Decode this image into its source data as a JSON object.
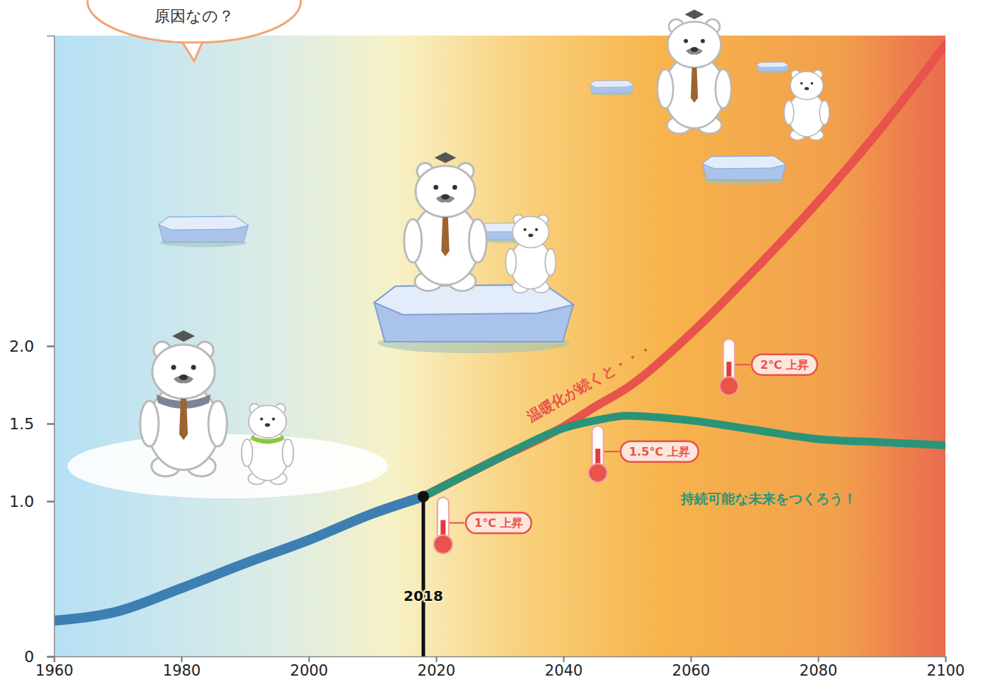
{
  "chart_data": {
    "type": "line",
    "x": [
      1960,
      1970,
      1980,
      1990,
      2000,
      2010,
      2018,
      2030,
      2040,
      2045,
      2050,
      2060,
      2070,
      2080,
      2090,
      2100
    ],
    "series": [
      {
        "color": "#3d7fb3",
        "values": [
          0.23,
          0.29,
          0.44,
          0.6,
          0.75,
          0.92,
          1.03,
          null,
          null,
          null,
          null,
          null,
          null,
          null,
          null,
          null
        ]
      },
      {
        "color": "#e8534b",
        "values": [
          null,
          null,
          null,
          null,
          null,
          null,
          1.03,
          1.28,
          1.48,
          1.61,
          1.73,
          2.08,
          2.49,
          2.93,
          3.41,
          3.94
        ]
      },
      {
        "color": "#2a9478",
        "values": [
          null,
          null,
          null,
          null,
          null,
          null,
          1.03,
          1.28,
          1.47,
          1.52,
          1.55,
          1.52,
          1.46,
          1.4,
          1.38,
          1.36
        ]
      }
    ],
    "xlim": [
      1960,
      2100
    ],
    "xticks": [
      1960,
      1980,
      2000,
      2020,
      2040,
      2060,
      2080,
      2100
    ],
    "ylim": [
      0,
      4
    ],
    "yticks": [
      0,
      {
        "value": 1,
        "label": "1.0"
      },
      1.5,
      {
        "value": 2,
        "label": "2.0"
      }
    ],
    "grid": false,
    "reference_lines": [
      {
        "x": 2018,
        "label": "2018"
      }
    ],
    "annotations": [
      {
        "text": "原因なの？",
        "x": 1982,
        "y": 4.12,
        "marker": "bubble",
        "color": "#333333"
      },
      {
        "text": "温暖化が続くと・・・",
        "x": 2044.2,
        "y": 1.76,
        "color": "#e8534b"
      },
      {
        "text": "持続可能な未来をつくろう！",
        "x": 2072.2,
        "y": 1.01,
        "color": "#2a9478"
      },
      {
        "text": "1℃ 上昇",
        "x": 2021.1,
        "y": 0.86,
        "marker": "thermometer",
        "color": "#e8534b"
      },
      {
        "text": "1.5℃ 上昇",
        "x": 2045.4,
        "y": 1.32,
        "marker": "thermometer",
        "color": "#e8534b"
      },
      {
        "text": "2℃ 上昇",
        "x": 2066.0,
        "y": 1.88,
        "marker": "thermometer",
        "color": "#e8534b"
      }
    ]
  }
}
